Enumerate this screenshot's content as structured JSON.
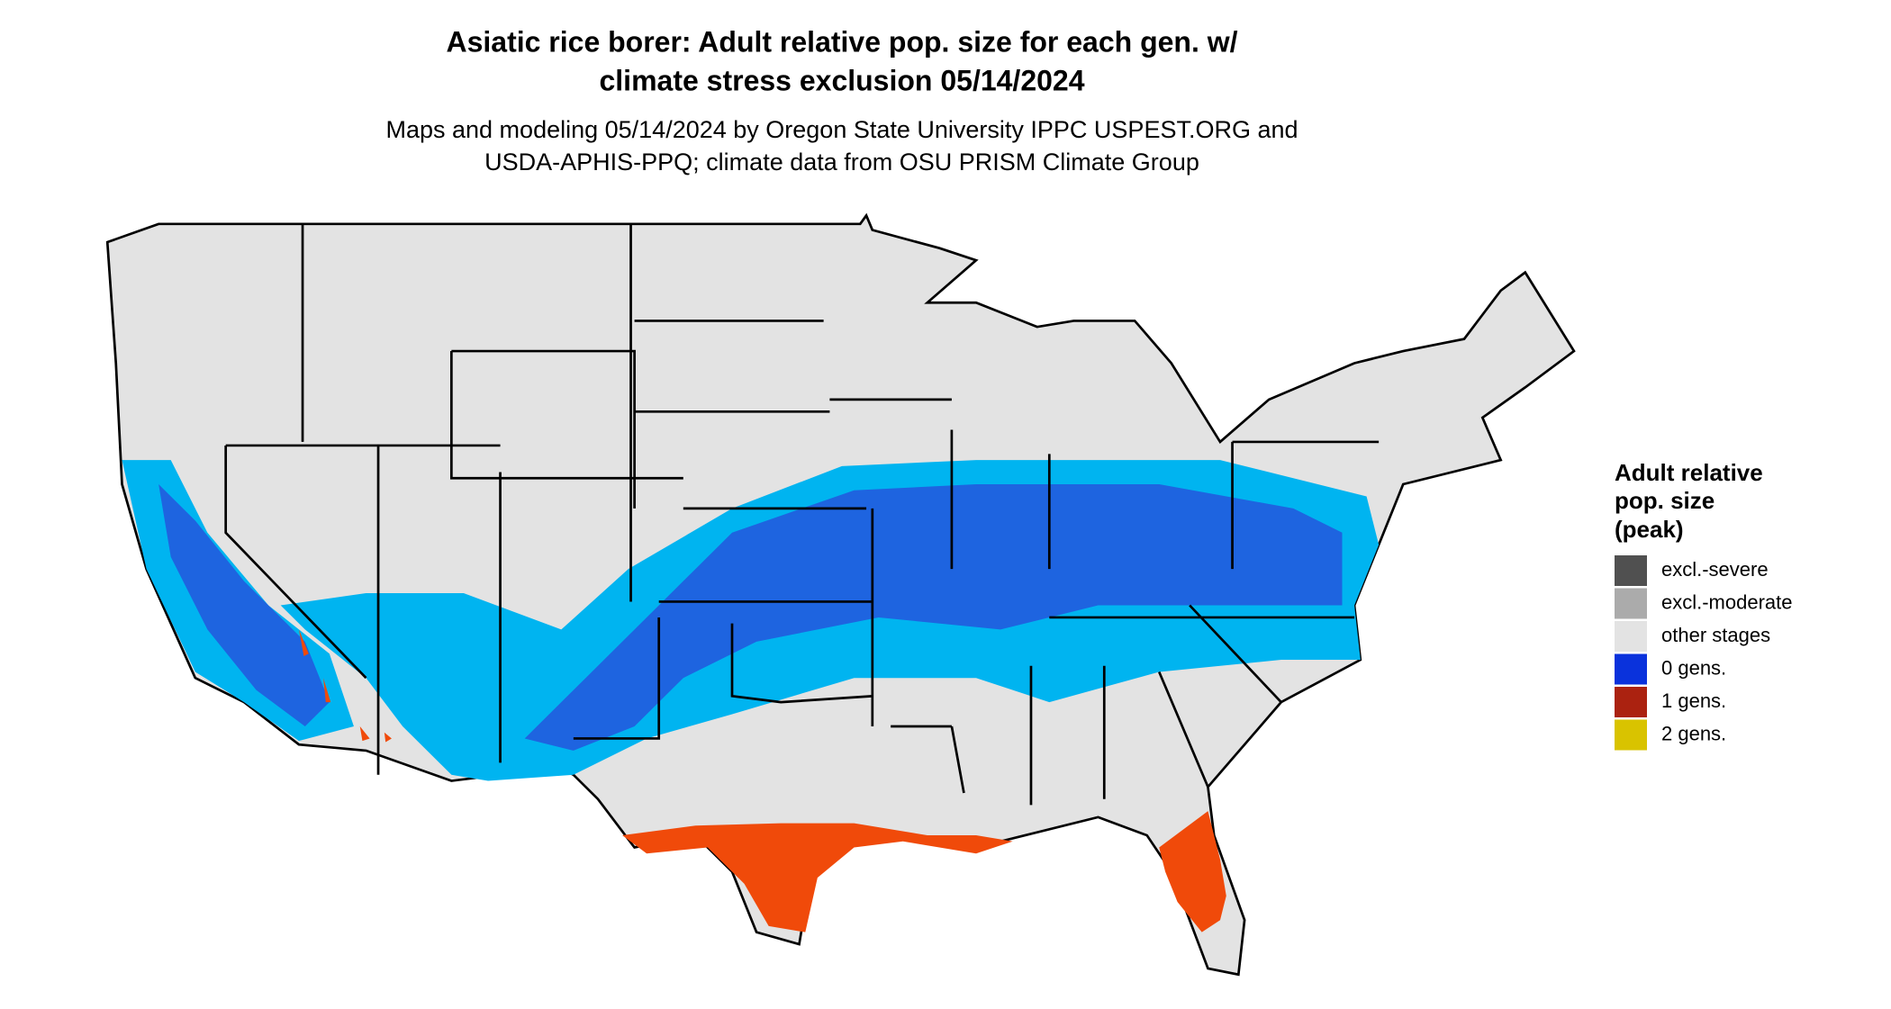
{
  "header": {
    "title_lines": [
      "Asiatic rice borer: Adult relative pop. size for each gen. w/",
      "climate stress exclusion 05/14/2024"
    ],
    "subtitle_lines": [
      "Maps and modeling 05/14/2024 by Oregon State University IPPC USPEST.ORG and",
      "USDA-APHIS-PPQ; climate data from OSU PRISM Climate Group"
    ]
  },
  "legend": {
    "title_lines": [
      "Adult relative",
      "pop. size",
      "(peak)"
    ],
    "items": [
      {
        "label": "excl.-severe",
        "color": "#505050"
      },
      {
        "label": "excl.-moderate",
        "color": "#ababab"
      },
      {
        "label": "other stages",
        "color": "#e3e3e3"
      },
      {
        "label": "0 gens.",
        "color": "#0a32dc"
      },
      {
        "label": "1 gens.",
        "color": "#ab2210"
      },
      {
        "label": "2 gens.",
        "color": "#d9c300"
      }
    ]
  }
}
